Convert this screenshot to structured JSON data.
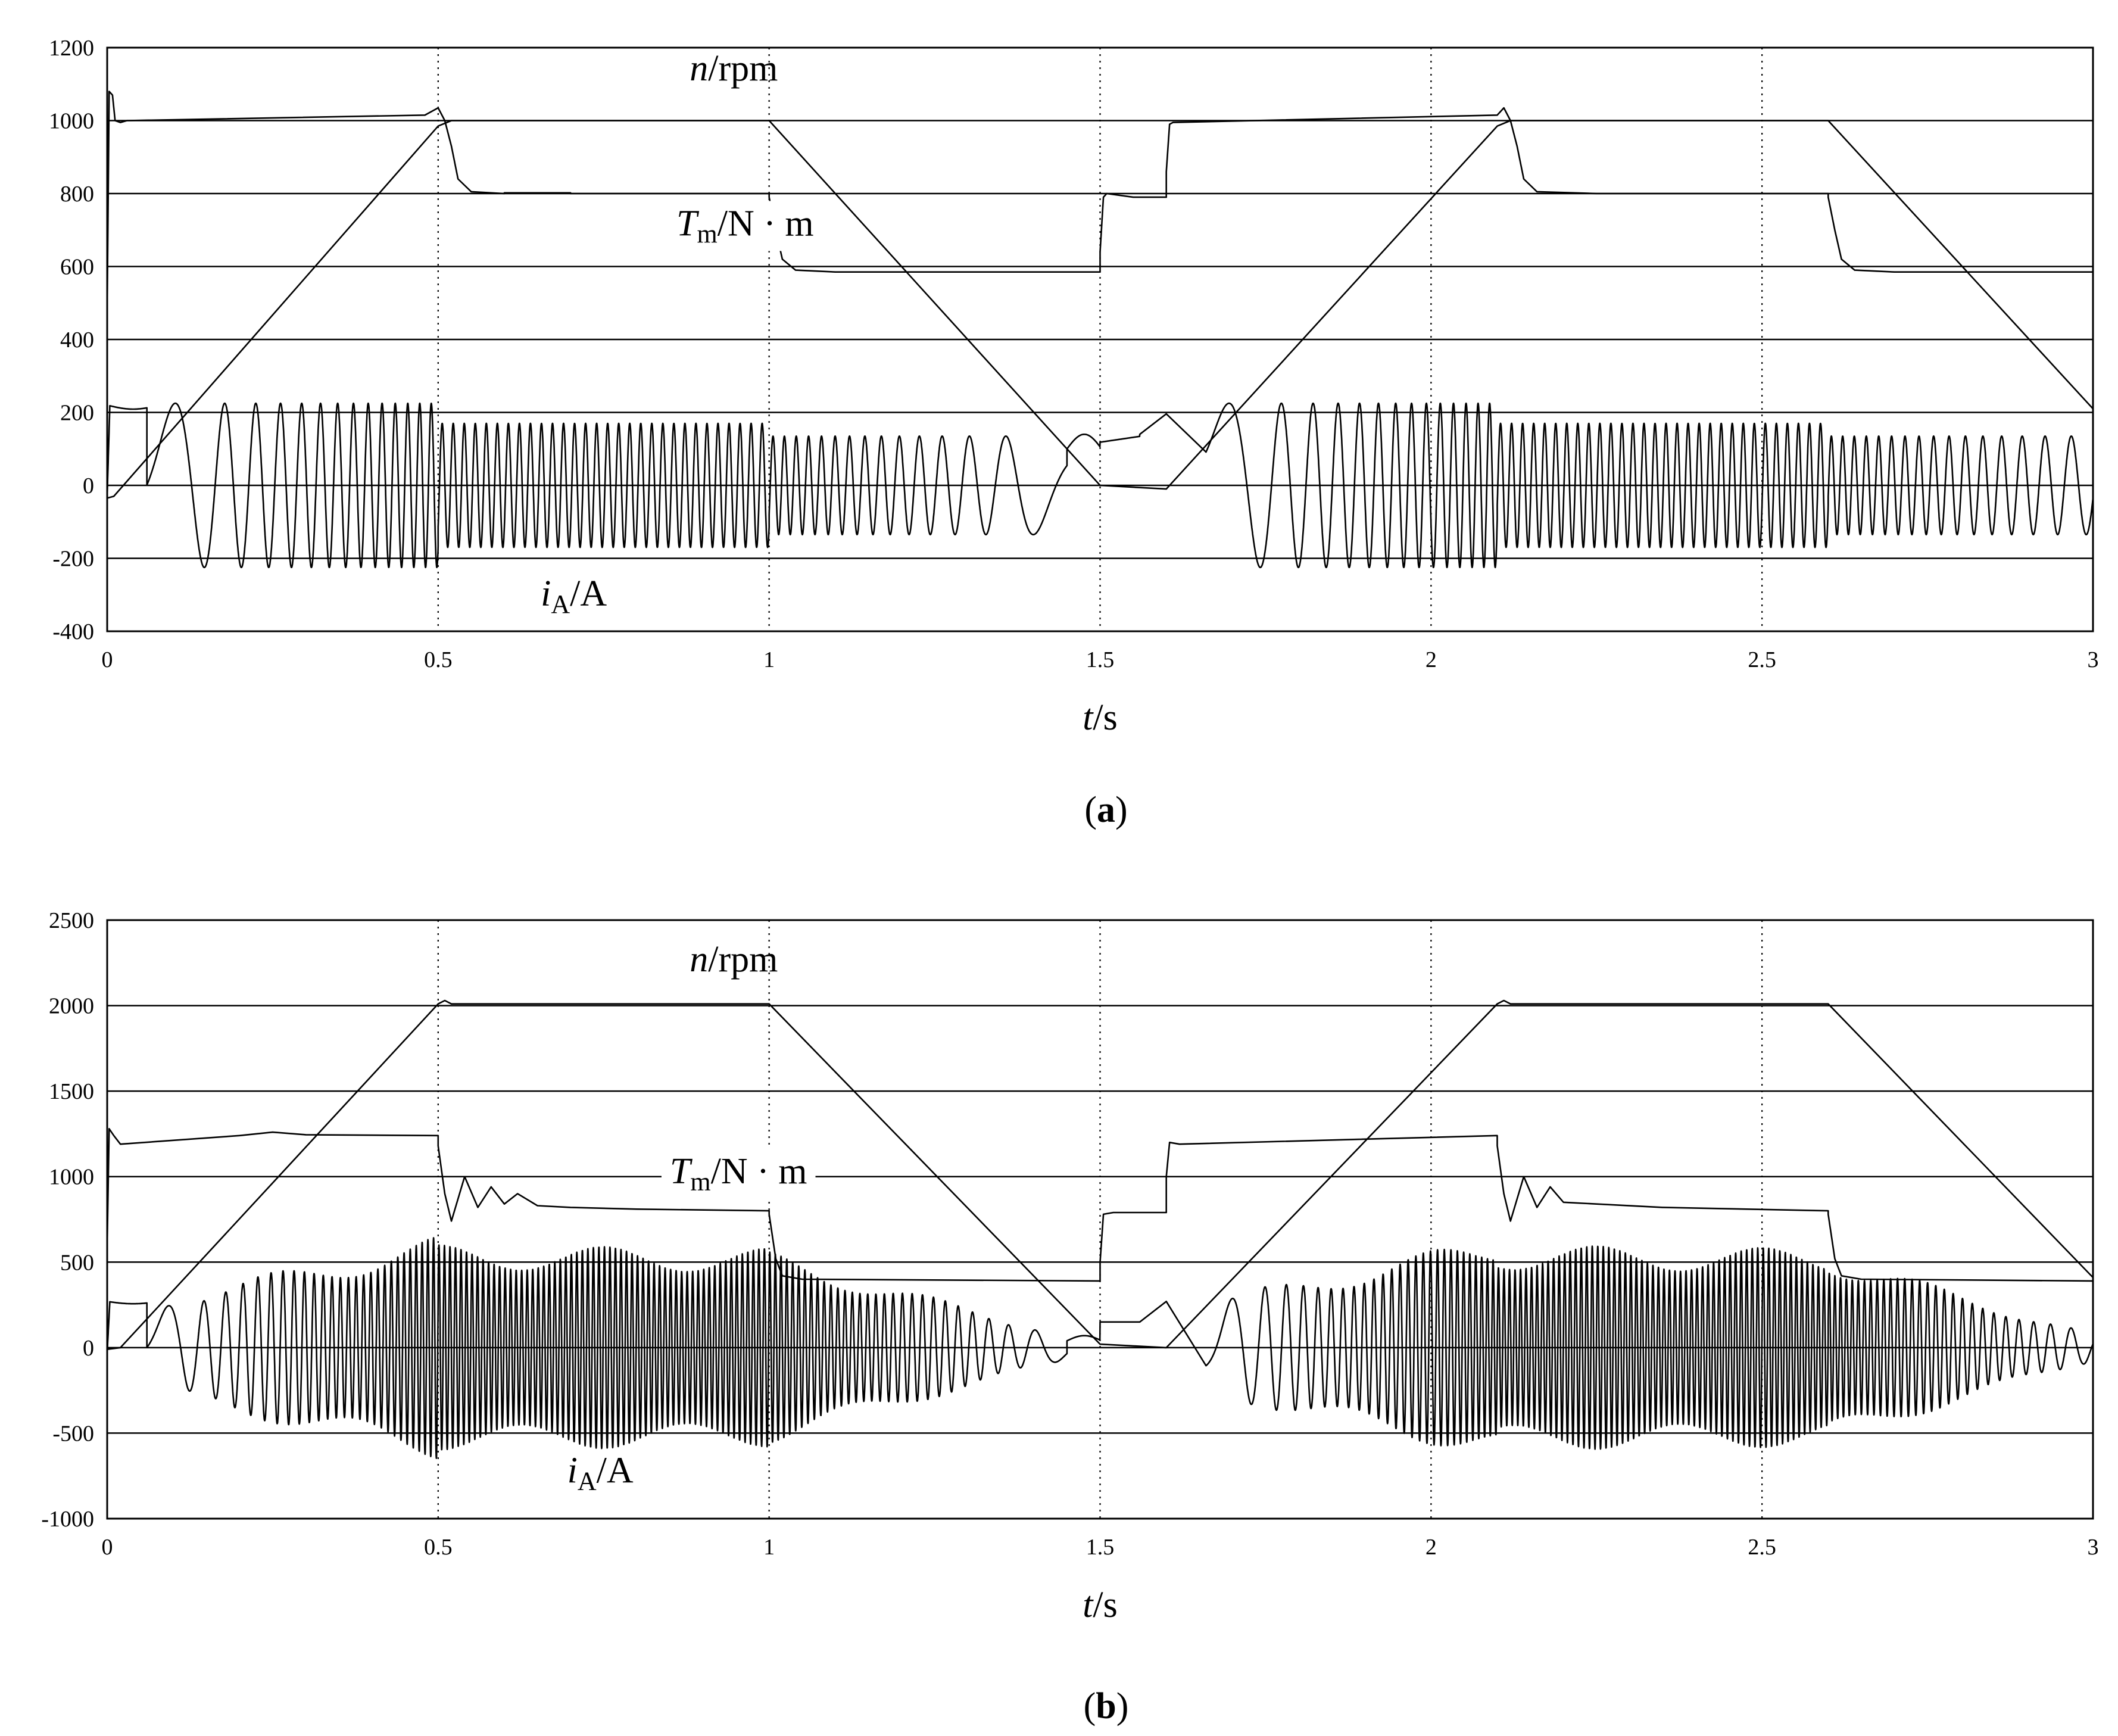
{
  "chart_data": [
    {
      "type": "line",
      "panel_label": "a",
      "xlabel": {
        "var": "t",
        "unit": "s"
      },
      "xlim": [
        0,
        3
      ],
      "ylim": [
        -400,
        1200
      ],
      "x_ticks": [
        "0",
        "0.5",
        "1",
        "1.5",
        "2",
        "2.5",
        "3"
      ],
      "y_ticks": [
        "-400",
        "-200",
        "0",
        "200",
        "400",
        "600",
        "800",
        "1000",
        "1200"
      ],
      "grid": "horizontal solid; vertical dotted",
      "series": [
        {
          "name": "n/rpm",
          "label_var": "n",
          "label_sub": "",
          "label_unit": "rpm",
          "label_pos": [
            0.88,
            1110
          ],
          "kind": "piecewise",
          "points": [
            [
              0,
              -35
            ],
            [
              0.01,
              -30
            ],
            [
              0.5,
              985
            ],
            [
              0.52,
              1000
            ],
            [
              1.0,
              1000
            ],
            [
              1.5,
              0
            ],
            [
              1.6,
              -10
            ],
            [
              2.1,
              985
            ],
            [
              2.12,
              1000
            ],
            [
              2.6,
              1000
            ],
            [
              3.0,
              210
            ]
          ]
        },
        {
          "name": "Tm/N·m",
          "label_var": "T",
          "label_sub": "m",
          "label_unit": "N · m",
          "label_pos": [
            0.86,
            685
          ],
          "kind": "piecewise",
          "points": [
            [
              0,
              480
            ],
            [
              0.003,
              1080
            ],
            [
              0.008,
              1070
            ],
            [
              0.012,
              1000
            ],
            [
              0.02,
              995
            ],
            [
              0.03,
              1000
            ],
            [
              0.48,
              1015
            ],
            [
              0.5,
              1035
            ],
            [
              0.51,
              1000
            ],
            [
              0.52,
              930
            ],
            [
              0.53,
              840
            ],
            [
              0.55,
              805
            ],
            [
              0.6,
              800
            ],
            [
              0.6,
              802
            ],
            [
              0.7,
              802
            ],
            [
              0.7,
              800
            ],
            [
              1.0,
              800
            ],
            [
              1.0,
              790
            ],
            [
              1.01,
              700
            ],
            [
              1.02,
              620
            ],
            [
              1.04,
              590
            ],
            [
              1.1,
              585
            ],
            [
              1.5,
              585
            ],
            [
              1.5,
              640
            ],
            [
              1.505,
              790
            ],
            [
              1.51,
              800
            ],
            [
              1.55,
              790
            ],
            [
              1.6,
              790
            ],
            [
              1.6,
              860
            ],
            [
              1.605,
              990
            ],
            [
              1.61,
              995
            ],
            [
              2.1,
              1015
            ],
            [
              2.11,
              1035
            ],
            [
              2.12,
              1000
            ],
            [
              2.13,
              930
            ],
            [
              2.14,
              840
            ],
            [
              2.16,
              805
            ],
            [
              2.25,
              800
            ],
            [
              2.6,
              800
            ],
            [
              2.6,
              790
            ],
            [
              2.61,
              700
            ],
            [
              2.62,
              620
            ],
            [
              2.64,
              590
            ],
            [
              2.7,
              585
            ],
            [
              3.0,
              585
            ]
          ]
        },
        {
          "name": "iA/A",
          "label_var": "i",
          "label_sub": "A",
          "label_unit": "A",
          "label_pos": [
            0.655,
            -330
          ],
          "kind": "sinusoid",
          "segments": [
            {
              "t": [
                0.0,
                0.06
              ],
              "mode": "lowfreq_start"
            },
            {
              "t": [
                0.06,
                0.5
              ],
              "amp": 225,
              "f": [
                3,
                60
              ],
              "offset": 0
            },
            {
              "t": [
                0.5,
                1.0
              ],
              "amp": 170,
              "f": [
                60,
                60
              ],
              "offset": 0
            },
            {
              "t": [
                1.0,
                1.45
              ],
              "amp": 135,
              "f": [
                60,
                3
              ],
              "offset": 0
            },
            {
              "t": [
                1.45,
                1.6
              ],
              "mode": "dc_segment"
            },
            {
              "t": [
                1.66,
                2.1
              ],
              "amp": 225,
              "f": [
                3,
                60
              ],
              "offset": 0
            },
            {
              "t": [
                2.1,
                2.6
              ],
              "amp": 170,
              "f": [
                60,
                60
              ],
              "offset": 0
            },
            {
              "t": [
                2.6,
                3.0
              ],
              "amp": 135,
              "f": [
                60,
                20
              ],
              "offset": 0
            }
          ]
        }
      ]
    },
    {
      "type": "line",
      "panel_label": "b",
      "xlabel": {
        "var": "t",
        "unit": "s"
      },
      "xlim": [
        0,
        3
      ],
      "ylim": [
        -1000,
        2500
      ],
      "x_ticks": [
        "0",
        "0.5",
        "1",
        "1.5",
        "2",
        "2.5",
        "3"
      ],
      "y_ticks": [
        "-1000",
        "-500",
        "0",
        "500",
        "1000",
        "1500",
        "2000",
        "2500"
      ],
      "grid": "horizontal solid; vertical dotted",
      "series": [
        {
          "name": "n/rpm",
          "label_var": "n",
          "label_sub": "",
          "label_unit": "rpm",
          "label_pos": [
            0.88,
            2200
          ],
          "kind": "piecewise",
          "points": [
            [
              0,
              -10
            ],
            [
              0.02,
              0
            ],
            [
              0.5,
              2010
            ],
            [
              0.51,
              2030
            ],
            [
              0.52,
              2010
            ],
            [
              1.0,
              2010
            ],
            [
              1.5,
              20
            ],
            [
              1.6,
              0
            ],
            [
              2.1,
              2010
            ],
            [
              2.11,
              2030
            ],
            [
              2.12,
              2010
            ],
            [
              2.6,
              2010
            ],
            [
              3.0,
              410
            ]
          ]
        },
        {
          "name": "Tm/N·m",
          "label_var": "T",
          "label_sub": "m",
          "label_unit": "N · m",
          "label_pos": [
            0.85,
            960
          ],
          "kind": "piecewise",
          "points": [
            [
              0,
              600
            ],
            [
              0.003,
              1280
            ],
            [
              0.01,
              1240
            ],
            [
              0.02,
              1190
            ],
            [
              0.2,
              1240
            ],
            [
              0.25,
              1260
            ],
            [
              0.3,
              1245
            ],
            [
              0.5,
              1240
            ],
            [
              0.5,
              1180
            ],
            [
              0.51,
              900
            ],
            [
              0.52,
              740
            ],
            [
              0.54,
              1000
            ],
            [
              0.56,
              820
            ],
            [
              0.58,
              940
            ],
            [
              0.6,
              840
            ],
            [
              0.62,
              900
            ],
            [
              0.65,
              830
            ],
            [
              0.7,
              820
            ],
            [
              0.8,
              810
            ],
            [
              1.0,
              800
            ],
            [
              1.0,
              780
            ],
            [
              1.01,
              520
            ],
            [
              1.02,
              420
            ],
            [
              1.05,
              400
            ],
            [
              1.5,
              390
            ],
            [
              1.5,
              500
            ],
            [
              1.505,
              780
            ],
            [
              1.52,
              790
            ],
            [
              1.6,
              790
            ],
            [
              1.6,
              1000
            ],
            [
              1.605,
              1200
            ],
            [
              1.62,
              1190
            ],
            [
              2.1,
              1240
            ],
            [
              2.1,
              1180
            ],
            [
              2.11,
              900
            ],
            [
              2.12,
              740
            ],
            [
              2.14,
              1000
            ],
            [
              2.16,
              820
            ],
            [
              2.18,
              940
            ],
            [
              2.2,
              850
            ],
            [
              2.25,
              840
            ],
            [
              2.35,
              820
            ],
            [
              2.6,
              800
            ],
            [
              2.6,
              780
            ],
            [
              2.61,
              520
            ],
            [
              2.62,
              420
            ],
            [
              2.65,
              400
            ],
            [
              3.0,
              390
            ]
          ]
        },
        {
          "name": "iA/A",
          "label_var": "i",
          "label_sub": "A",
          "label_unit": "A",
          "label_pos": [
            0.695,
            -790
          ],
          "kind": "sinusoid",
          "segments": [
            {
              "t": [
                0.0,
                0.06
              ],
              "mode": "lowfreq_start"
            },
            {
              "t": [
                0.06,
                0.5
              ],
              "amp_env": [
                280,
                650
              ],
              "f": [
                3,
                120
              ],
              "offset": 0
            },
            {
              "t": [
                0.5,
                1.0
              ],
              "amp_env": [
                600,
                580
              ],
              "f": [
                120,
                120
              ],
              "offset": 0
            },
            {
              "t": [
                1.0,
                1.45
              ],
              "amp_env": [
                560,
                80
              ],
              "f": [
                120,
                8
              ],
              "offset": 0
            },
            {
              "t": [
                1.45,
                1.6
              ],
              "mode": "dc_segment"
            },
            {
              "t": [
                1.66,
                2.1
              ],
              "amp_env": [
                280,
                650
              ],
              "f": [
                3,
                120
              ],
              "offset": 0
            },
            {
              "t": [
                2.1,
                2.6
              ],
              "amp_env": [
                600,
                580
              ],
              "f": [
                120,
                120
              ],
              "offset": 0
            },
            {
              "t": [
                2.6,
                3.0
              ],
              "amp_env": [
                560,
                80
              ],
              "f": [
                120,
                20
              ],
              "offset": 0
            }
          ]
        }
      ]
    }
  ]
}
